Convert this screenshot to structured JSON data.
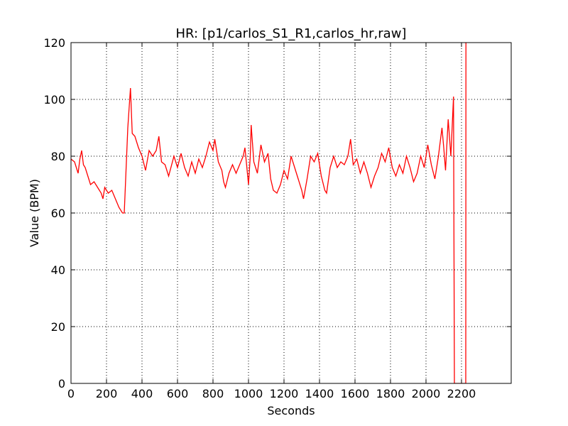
{
  "chart_data": {
    "type": "line",
    "title": "HR: [p1/carlos_S1_R1,carlos_hr,raw]",
    "xlabel": "Seconds",
    "ylabel": "Value (BPM)",
    "color": "#ff0000",
    "grid": true,
    "xlim": [
      0,
      2480
    ],
    "ylim": [
      0,
      120
    ],
    "xticks": [
      0,
      200,
      400,
      600,
      800,
      1000,
      1200,
      1400,
      1600,
      1800,
      2000,
      2200
    ],
    "yticks": [
      0,
      20,
      40,
      60,
      80,
      100,
      120
    ],
    "x": [
      0,
      20,
      40,
      50,
      60,
      70,
      80,
      100,
      110,
      130,
      150,
      170,
      180,
      190,
      210,
      230,
      250,
      270,
      290,
      300,
      310,
      320,
      335,
      345,
      360,
      380,
      400,
      420,
      440,
      460,
      480,
      495,
      510,
      530,
      550,
      580,
      600,
      620,
      640,
      660,
      680,
      700,
      720,
      740,
      760,
      780,
      800,
      810,
      830,
      850,
      860,
      870,
      890,
      910,
      930,
      950,
      970,
      980,
      1000,
      1010,
      1015,
      1030,
      1050,
      1070,
      1090,
      1110,
      1125,
      1140,
      1160,
      1180,
      1200,
      1220,
      1240,
      1260,
      1280,
      1300,
      1310,
      1330,
      1350,
      1370,
      1390,
      1410,
      1430,
      1440,
      1460,
      1480,
      1500,
      1520,
      1540,
      1560,
      1575,
      1590,
      1610,
      1630,
      1650,
      1670,
      1690,
      1710,
      1730,
      1750,
      1770,
      1790,
      1810,
      1830,
      1850,
      1870,
      1890,
      1910,
      1930,
      1950,
      1970,
      1990,
      2010,
      2030,
      2050,
      2070,
      2090,
      2100,
      2110,
      2125,
      2140,
      2155,
      2160,
      2224,
      2225
    ],
    "values": [
      79,
      78,
      74,
      79,
      82,
      77,
      76,
      72,
      70,
      71,
      69,
      67,
      65,
      69,
      67,
      68,
      65,
      62,
      60,
      60,
      75,
      90,
      104,
      88,
      87,
      83,
      80,
      75,
      82,
      80,
      82,
      87,
      78,
      77,
      73,
      80,
      76,
      81,
      76,
      73,
      78,
      74,
      79,
      76,
      80,
      85,
      82,
      86,
      78,
      75,
      71,
      69,
      74,
      77,
      74,
      77,
      80,
      83,
      70,
      80,
      91,
      78,
      74,
      84,
      78,
      81,
      72,
      68,
      67,
      70,
      75,
      72,
      80,
      76,
      72,
      68,
      65,
      72,
      80,
      78,
      81,
      73,
      68,
      67,
      76,
      80,
      76,
      78,
      77,
      80,
      86,
      77,
      79,
      74,
      78,
      74,
      69,
      73,
      76,
      81,
      78,
      83,
      76,
      73,
      77,
      74,
      80,
      76,
      71,
      74,
      80,
      76,
      84,
      77,
      72,
      80,
      90,
      83,
      75,
      93,
      80,
      101,
      0,
      0,
      120
    ]
  }
}
